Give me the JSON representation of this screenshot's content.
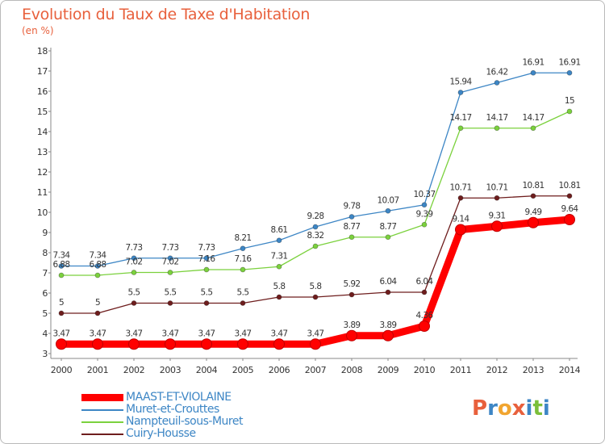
{
  "header": {
    "title": "Evolution du Taux de Taxe d'Habitation",
    "subtitle": "(en %)"
  },
  "logo": {
    "text": "Proxiti",
    "colors": [
      "#e8603c",
      "#3d86c5",
      "#f1a530",
      "#e8603c",
      "#3d86c5",
      "#7bbf3a",
      "#3d86c5"
    ]
  },
  "chart_data": {
    "type": "line",
    "title": "Evolution du Taux de Taxe d'Habitation",
    "ylabel": "(en %)",
    "ylim": [
      3,
      18
    ],
    "yticks": [
      3,
      4,
      5,
      6,
      7,
      8,
      9,
      10,
      11,
      12,
      13,
      14,
      15,
      16,
      17,
      18
    ],
    "categories": [
      "2000",
      "2001",
      "2002",
      "2003",
      "2004",
      "2005",
      "2006",
      "2007",
      "2008",
      "2009",
      "2010",
      "2011",
      "2012",
      "2013",
      "2014"
    ],
    "legend": "bottom-left",
    "series": [
      {
        "name": "Muret-et-Crouttes",
        "color": "#3d86c5",
        "values": [
          7.34,
          7.34,
          7.73,
          7.73,
          7.73,
          8.21,
          8.61,
          9.28,
          9.78,
          10.07,
          10.37,
          15.94,
          16.42,
          16.91,
          16.91
        ],
        "labels": [
          "7.34",
          "7.34",
          "7.73",
          "7.73",
          "7.73",
          "8.21",
          "8.61",
          "9.28",
          "9.78",
          "10.07",
          "10.37",
          "15.94",
          "16.42",
          "16.91",
          "16.91"
        ]
      },
      {
        "name": "Nampteuil-sous-Muret",
        "color": "#7bd13d",
        "values": [
          6.88,
          6.88,
          7.02,
          7.02,
          7.16,
          7.16,
          7.31,
          8.32,
          8.77,
          8.77,
          9.39,
          14.17,
          14.17,
          14.17,
          15
        ],
        "labels": [
          "6.88",
          "6.88",
          "7.02",
          "7.02",
          "7.16",
          "7.16",
          "7.31",
          "8.32",
          "8.77",
          "8.77",
          "9.39",
          "14.17",
          "14.17",
          "14.17",
          "15"
        ]
      },
      {
        "name": "Cuiry-Housse",
        "color": "#6e1d1d",
        "values": [
          5,
          5,
          5.5,
          5.5,
          5.5,
          5.5,
          5.8,
          5.8,
          5.92,
          6.04,
          6.04,
          10.71,
          10.71,
          10.81,
          10.81
        ],
        "labels": [
          "5",
          "5",
          "5.5",
          "5.5",
          "5.5",
          "5.5",
          "5.8",
          "5.8",
          "5.92",
          "6.04",
          "6.04",
          "10.71",
          "10.71",
          "10.81",
          "10.81"
        ]
      },
      {
        "name": "MAAST-ET-VIOLAINE",
        "color": "#ff0000",
        "values": [
          3.47,
          3.47,
          3.47,
          3.47,
          3.47,
          3.47,
          3.47,
          3.47,
          3.89,
          3.89,
          4.36,
          9.14,
          9.31,
          9.49,
          9.64
        ],
        "labels": [
          "3.47",
          "3.47",
          "3.47",
          "3.47",
          "3.47",
          "3.47",
          "3.47",
          "3.47",
          "3.89",
          "3.89",
          "4.36",
          "9.14",
          "9.31",
          "9.49",
          "9.64"
        ]
      }
    ],
    "legend_order": [
      "MAAST-ET-VIOLAINE",
      "Muret-et-Crouttes",
      "Nampteuil-sous-Muret",
      "Cuiry-Housse"
    ]
  }
}
